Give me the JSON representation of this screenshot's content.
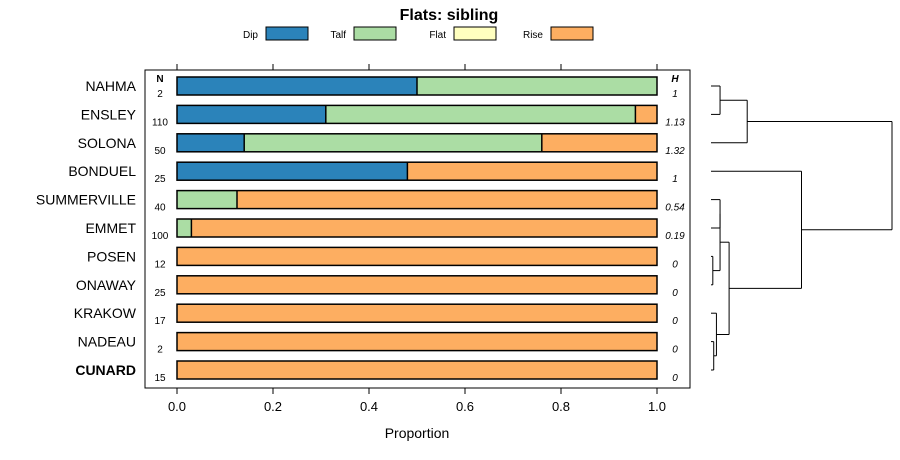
{
  "chart_data": {
    "type": "stacked-horizontal-bar",
    "title": "Flats: sibling",
    "xlabel": "Proportion",
    "xlim": [
      0,
      1
    ],
    "xticks": [
      0.0,
      0.2,
      0.4,
      0.6,
      0.8,
      1.0
    ],
    "xtick_labels": [
      "0.0",
      "0.2",
      "0.4",
      "0.6",
      "0.8",
      "1.0"
    ],
    "n_header": "N",
    "h_header": "H",
    "legend": [
      {
        "name": "Dip",
        "color": "#2b83ba"
      },
      {
        "name": "Talf",
        "color": "#abdda4"
      },
      {
        "name": "Flat",
        "color": "#ffffbf"
      },
      {
        "name": "Rise",
        "color": "#fdae61"
      }
    ],
    "rows": [
      {
        "category": "NAHMA",
        "n": "2",
        "h": "1",
        "bold": false,
        "values": [
          0.5,
          0.5,
          0.0,
          0.0
        ]
      },
      {
        "category": "ENSLEY",
        "n": "110",
        "h": "1.13",
        "bold": false,
        "values": [
          0.31,
          0.645,
          0.0,
          0.045
        ]
      },
      {
        "category": "SOLONA",
        "n": "50",
        "h": "1.32",
        "bold": false,
        "values": [
          0.14,
          0.62,
          0.0,
          0.24
        ]
      },
      {
        "category": "BONDUEL",
        "n": "25",
        "h": "1",
        "bold": false,
        "values": [
          0.48,
          0.0,
          0.0,
          0.52
        ]
      },
      {
        "category": "SUMMERVILLE",
        "n": "40",
        "h": "0.54",
        "bold": false,
        "values": [
          0.0,
          0.125,
          0.0,
          0.875
        ]
      },
      {
        "category": "EMMET",
        "n": "100",
        "h": "0.19",
        "bold": false,
        "values": [
          0.0,
          0.03,
          0.0,
          0.97
        ]
      },
      {
        "category": "POSEN",
        "n": "12",
        "h": "0",
        "bold": false,
        "values": [
          0.0,
          0.0,
          0.0,
          1.0
        ]
      },
      {
        "category": "ONAWAY",
        "n": "25",
        "h": "0",
        "bold": false,
        "values": [
          0.0,
          0.0,
          0.0,
          1.0
        ]
      },
      {
        "category": "KRAKOW",
        "n": "17",
        "h": "0",
        "bold": false,
        "values": [
          0.0,
          0.0,
          0.0,
          1.0
        ]
      },
      {
        "category": "NADEAU",
        "n": "2",
        "h": "0",
        "bold": false,
        "values": [
          0.0,
          0.0,
          0.0,
          1.0
        ]
      },
      {
        "category": "CUNARD",
        "n": "15",
        "h": "0",
        "bold": true,
        "values": [
          0.0,
          0.0,
          0.0,
          1.0
        ]
      }
    ],
    "dendrogram": [
      {
        "leaves": [
          0,
          1
        ],
        "height": 0.05
      },
      {
        "leaves": [
          0,
          1,
          2
        ],
        "height": 0.2
      },
      {
        "leaves": [
          4,
          5
        ],
        "height": 0.05
      },
      {
        "leaves": [
          9,
          10
        ],
        "height": 0.015
      },
      {
        "leaves": [
          8,
          9,
          10
        ],
        "height": 0.03
      },
      {
        "leaves": [
          6,
          7
        ],
        "height": 0.01
      },
      {
        "leaves": [
          4,
          5,
          6,
          7
        ],
        "height": 0.05
      },
      {
        "leaves": [
          4,
          5,
          6,
          7,
          8,
          9,
          10
        ],
        "height": 0.1
      },
      {
        "leaves": [
          3,
          4,
          5,
          6,
          7,
          8,
          9,
          10
        ],
        "height": 0.5
      },
      {
        "leaves": [
          0,
          1,
          2,
          3,
          4,
          5,
          6,
          7,
          8,
          9,
          10
        ],
        "height": 1.0
      }
    ]
  }
}
